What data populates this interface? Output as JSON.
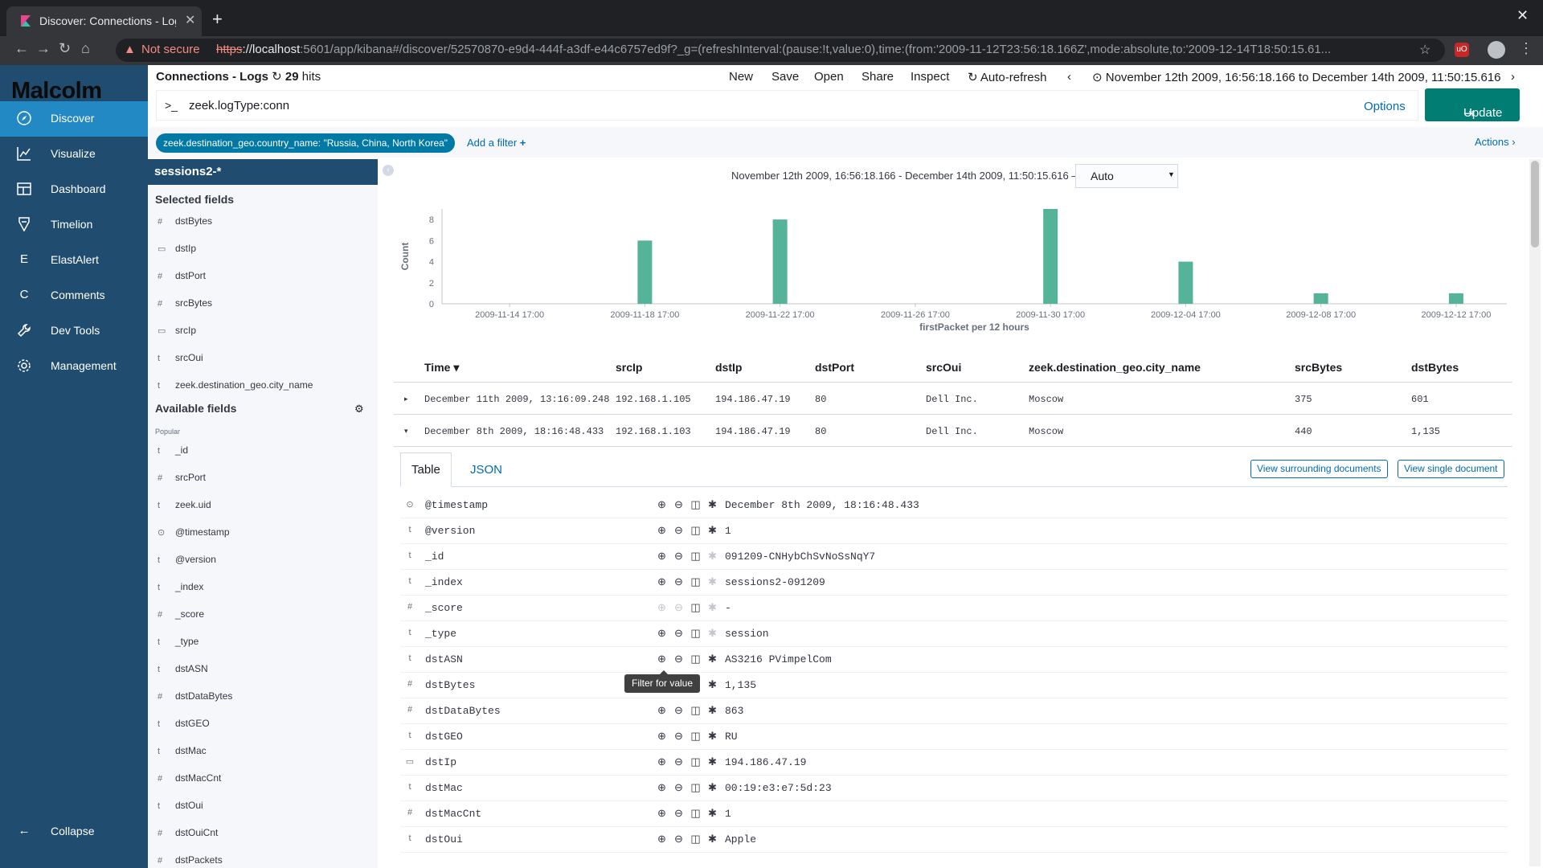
{
  "browser": {
    "tab_title": "Discover: Connections - Logs",
    "not_secure": "Not secure",
    "url_scheme": "https",
    "url_host": "://localhost",
    "url_rest": ":5601/app/kibana#/discover/52570870-e9d4-444f-a3df-e44c6757ed9f?_g=(refreshInterval:(pause:!t,value:0),time:(from:'2009-11-12T23:56:18.166Z',mode:absolute,to:'2009-12-14T18:50:15.61..."
  },
  "app": {
    "logo": "Malcolm",
    "sidebar": [
      {
        "label": "Discover",
        "icon": "compass-icon"
      },
      {
        "label": "Visualize",
        "icon": "chart-icon"
      },
      {
        "label": "Dashboard",
        "icon": "dashboard-icon"
      },
      {
        "label": "Timelion",
        "icon": "timelion-icon"
      },
      {
        "label": "ElastAlert",
        "icon": "E"
      },
      {
        "label": "Comments",
        "icon": "C"
      },
      {
        "label": "Dev Tools",
        "icon": "wrench-icon"
      },
      {
        "label": "Management",
        "icon": "gear-icon"
      }
    ],
    "collapse": "Collapse"
  },
  "topnav": {
    "title": "Connections - Logs",
    "hits_count": "29",
    "hits_label": "hits",
    "links": [
      "New",
      "Save",
      "Open",
      "Share",
      "Inspect"
    ],
    "auto_refresh": "Auto-refresh",
    "time_range": "November 12th 2009, 16:56:18.166 to December 14th 2009, 11:50:15.616"
  },
  "query": {
    "prompt": ">_",
    "text": "zeek.logType:conn",
    "options": "Options",
    "update": "Update"
  },
  "filters": {
    "pill": "zeek.destination_geo.country_name: \"Russia, China, North Korea\"",
    "add": "Add a filter",
    "actions": "Actions"
  },
  "fields_panel": {
    "index": "sessions2-*",
    "selected_title": "Selected fields",
    "selected": [
      {
        "type": "#",
        "name": "dstBytes"
      },
      {
        "type": "ip",
        "name": "dstIp"
      },
      {
        "type": "#",
        "name": "dstPort"
      },
      {
        "type": "#",
        "name": "srcBytes"
      },
      {
        "type": "ip",
        "name": "srcIp"
      },
      {
        "type": "t",
        "name": "srcOui"
      },
      {
        "type": "t",
        "name": "zeek.destination_geo.city_name"
      }
    ],
    "available_title": "Available fields",
    "popular_label": "Popular",
    "available": [
      {
        "type": "t",
        "name": "_id"
      },
      {
        "type": "#",
        "name": "srcPort"
      },
      {
        "type": "t",
        "name": "zeek.uid"
      },
      {
        "type": "clock",
        "name": "@timestamp"
      },
      {
        "type": "t",
        "name": "@version"
      },
      {
        "type": "t",
        "name": "_index"
      },
      {
        "type": "#",
        "name": "_score"
      },
      {
        "type": "t",
        "name": "_type"
      },
      {
        "type": "t",
        "name": "dstASN"
      },
      {
        "type": "#",
        "name": "dstDataBytes"
      },
      {
        "type": "t",
        "name": "dstGEO"
      },
      {
        "type": "t",
        "name": "dstMac"
      },
      {
        "type": "#",
        "name": "dstMacCnt"
      },
      {
        "type": "t",
        "name": "dstOui"
      },
      {
        "type": "#",
        "name": "dstOuiCnt"
      },
      {
        "type": "#",
        "name": "dstPackets"
      }
    ]
  },
  "histogram": {
    "range_text": "November 12th 2009, 16:56:18.166 - December 14th 2009, 11:50:15.616 —",
    "interval": "Auto"
  },
  "chart_data": {
    "type": "bar",
    "xlabel": "firstPacket per 12 hours",
    "ylabel": "Count",
    "ylim": [
      0,
      9
    ],
    "yticks": [
      0,
      2,
      4,
      6,
      8
    ],
    "xticks": [
      "2009-11-14 17:00",
      "2009-11-18 17:00",
      "2009-11-22 17:00",
      "2009-11-26 17:00",
      "2009-11-30 17:00",
      "2009-12-04 17:00",
      "2009-12-08 17:00",
      "2009-12-12 17:00"
    ],
    "x_start": "2009-11-12 17:00",
    "x_end": "2009-12-14 05:00",
    "bars": [
      {
        "x": "2009-11-18 17:00",
        "value": 6
      },
      {
        "x": "2009-11-22 17:00",
        "value": 8
      },
      {
        "x": "2009-11-30 17:00",
        "value": 9
      },
      {
        "x": "2009-12-04 17:00",
        "value": 4
      },
      {
        "x": "2009-12-08 17:00",
        "value": 1
      },
      {
        "x": "2009-12-12 17:00",
        "value": 1
      }
    ],
    "color": "#54b399"
  },
  "doc_table": {
    "columns": [
      "Time",
      "srcIp",
      "dstIp",
      "dstPort",
      "srcOui",
      "zeek.destination_geo.city_name",
      "srcBytes",
      "dstBytes"
    ],
    "rows": [
      [
        "December 11th 2009, 13:16:09.248",
        "192.168.1.105",
        "194.186.47.19",
        "80",
        "Dell Inc.",
        "Moscow",
        "375",
        "601"
      ],
      [
        "December 8th 2009, 18:16:48.433",
        "192.168.1.103",
        "194.186.47.19",
        "80",
        "Dell Inc.",
        "Moscow",
        "440",
        "1,135"
      ]
    ]
  },
  "detail": {
    "tabs": [
      "Table",
      "JSON"
    ],
    "view_surrounding": "View surrounding documents",
    "view_single": "View single document",
    "tooltip": "Filter for value",
    "rows": [
      {
        "type": "clock",
        "key": "@timestamp",
        "value": "December 8th 2009, 18:16:48.433"
      },
      {
        "type": "t",
        "key": "@version",
        "value": "1"
      },
      {
        "type": "t",
        "key": "_id",
        "value": "091209-CNHybChSvNoSsNqY7"
      },
      {
        "type": "t",
        "key": "_index",
        "value": "sessions2-091209"
      },
      {
        "type": "#",
        "key": "_score",
        "value": " -"
      },
      {
        "type": "t",
        "key": "_type",
        "value": "session"
      },
      {
        "type": "t",
        "key": "dstASN",
        "value": "AS3216 PVimpelCom"
      },
      {
        "type": "#",
        "key": "dstBytes",
        "value": "1,135"
      },
      {
        "type": "#",
        "key": "dstDataBytes",
        "value": "863"
      },
      {
        "type": "t",
        "key": "dstGEO",
        "value": "RU"
      },
      {
        "type": "ip",
        "key": "dstIp",
        "value": "194.186.47.19"
      },
      {
        "type": "t",
        "key": "dstMac",
        "value": "00:19:e3:e7:5d:23"
      },
      {
        "type": "#",
        "key": "dstMacCnt",
        "value": "1"
      },
      {
        "type": "t",
        "key": "dstOui",
        "value": "Apple"
      }
    ]
  }
}
